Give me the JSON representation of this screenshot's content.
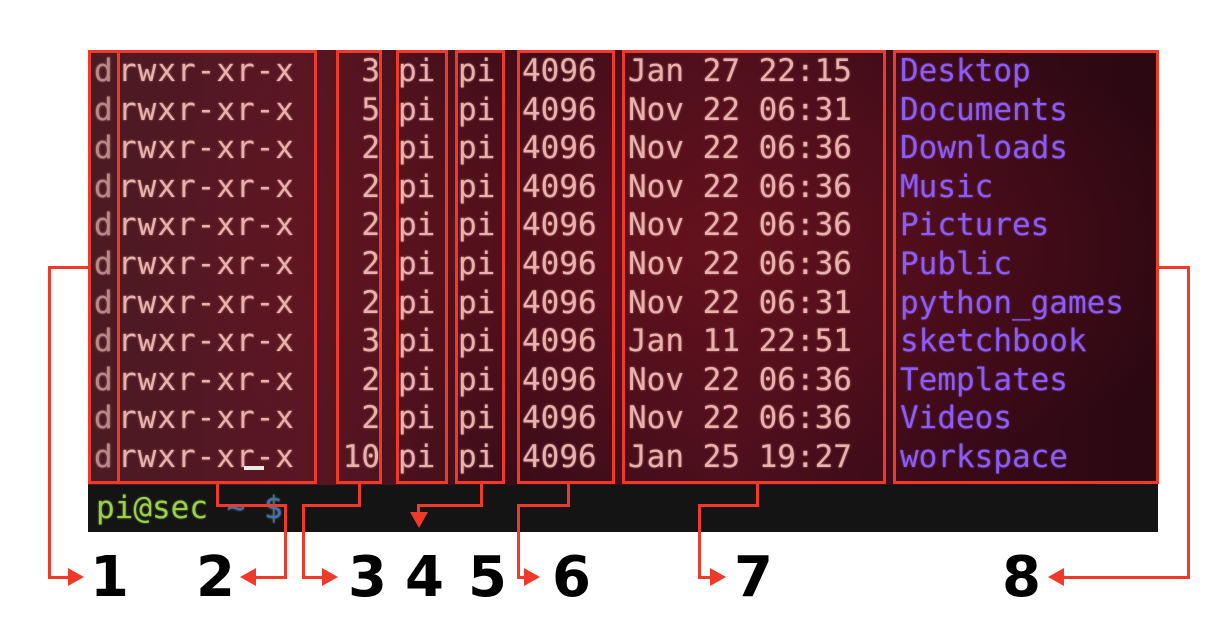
{
  "terminal": {
    "rows": [
      {
        "type": "d",
        "perm": "rwxr-xr-x",
        "links": "3",
        "user": "pi",
        "group": "pi",
        "size": "4096",
        "date": "Jan 27 22:15",
        "name": "Desktop"
      },
      {
        "type": "d",
        "perm": "rwxr-xr-x",
        "links": "5",
        "user": "pi",
        "group": "pi",
        "size": "4096",
        "date": "Nov 22 06:31",
        "name": "Documents"
      },
      {
        "type": "d",
        "perm": "rwxr-xr-x",
        "links": "2",
        "user": "pi",
        "group": "pi",
        "size": "4096",
        "date": "Nov 22 06:36",
        "name": "Downloads"
      },
      {
        "type": "d",
        "perm": "rwxr-xr-x",
        "links": "2",
        "user": "pi",
        "group": "pi",
        "size": "4096",
        "date": "Nov 22 06:36",
        "name": "Music"
      },
      {
        "type": "d",
        "perm": "rwxr-xr-x",
        "links": "2",
        "user": "pi",
        "group": "pi",
        "size": "4096",
        "date": "Nov 22 06:36",
        "name": "Pictures"
      },
      {
        "type": "d",
        "perm": "rwxr-xr-x",
        "links": "2",
        "user": "pi",
        "group": "pi",
        "size": "4096",
        "date": "Nov 22 06:36",
        "name": "Public"
      },
      {
        "type": "d",
        "perm": "rwxr-xr-x",
        "links": "2",
        "user": "pi",
        "group": "pi",
        "size": "4096",
        "date": "Nov 22 06:31",
        "name": "python_games"
      },
      {
        "type": "d",
        "perm": "rwxr-xr-x",
        "links": "3",
        "user": "pi",
        "group": "pi",
        "size": "4096",
        "date": "Jan 11 22:51",
        "name": "sketchbook"
      },
      {
        "type": "d",
        "perm": "rwxr-xr-x",
        "links": "2",
        "user": "pi",
        "group": "pi",
        "size": "4096",
        "date": "Nov 22 06:36",
        "name": "Templates"
      },
      {
        "type": "d",
        "perm": "rwxr-xr-x",
        "links": "2",
        "user": "pi",
        "group": "pi",
        "size": "4096",
        "date": "Nov 22 06:36",
        "name": "Videos"
      },
      {
        "type": "d",
        "perm": "rwxr-xr-x",
        "links": "10",
        "user": "pi",
        "group": "pi",
        "size": "4096",
        "date": "Jan 25 19:27",
        "name": "workspace"
      }
    ],
    "prompt": {
      "user_host": "pi@sec",
      "suffix": " ~ $"
    }
  },
  "annotations": {
    "labels": [
      "1",
      "2",
      "3",
      "4",
      "5",
      "6",
      "7",
      "8"
    ],
    "box_color": "#ef3a2a"
  },
  "colors": {
    "file_text": "#e9b1ad",
    "dir_name": "#8c5cf4",
    "prompt_user": "#9ad04a",
    "prompt_path": "#3f6ec4"
  }
}
